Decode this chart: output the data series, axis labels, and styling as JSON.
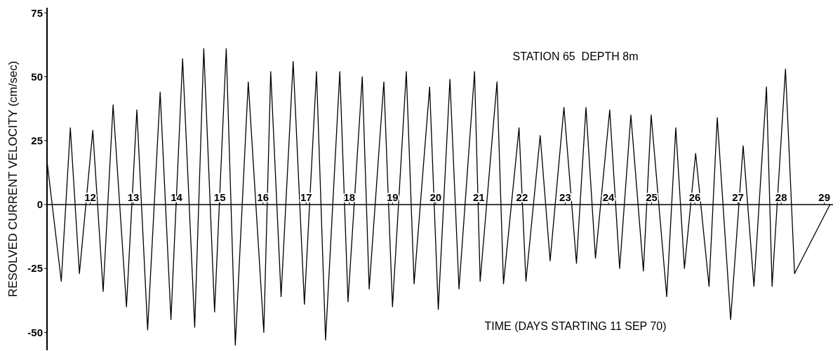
{
  "chart_data": {
    "type": "line",
    "title": "STATION 65  DEPTH 8m",
    "xlabel": "TIME (DAYS STARTING 11 SEP 70)",
    "ylabel": "RESOLVED CURRENT VELOCITY (cm/sec)",
    "x": [
      11.0,
      11.33,
      11.54,
      11.75,
      12.06,
      12.3,
      12.53,
      12.84,
      13.08,
      13.33,
      13.62,
      13.87,
      14.14,
      14.42,
      14.63,
      14.88,
      15.15,
      15.36,
      15.66,
      16.02,
      16.18,
      16.42,
      16.7,
      16.96,
      17.24,
      17.45,
      17.78,
      17.97,
      18.3,
      18.46,
      18.8,
      19.0,
      19.32,
      19.5,
      19.86,
      20.06,
      20.33,
      20.54,
      20.9,
      21.03,
      21.42,
      21.57,
      21.93,
      22.09,
      22.42,
      22.65,
      22.97,
      23.26,
      23.48,
      23.7,
      24.03,
      24.26,
      24.52,
      24.81,
      24.99,
      25.35,
      25.56,
      25.76,
      26.02,
      26.33,
      26.52,
      26.83,
      27.12,
      27.37,
      27.66,
      27.79,
      28.1,
      28.31,
      29.13
    ],
    "series": [
      {
        "color": "#000000",
        "values": [
          17,
          -30,
          30,
          -27,
          29,
          -34,
          39,
          -40,
          37,
          -49,
          44,
          -45,
          57,
          -48,
          61,
          -42,
          61,
          -55,
          48,
          -50,
          52,
          -36,
          56,
          -39,
          52,
          -53,
          52,
          -38,
          50,
          -33,
          48,
          -40,
          52,
          -31,
          46,
          -41,
          49,
          -33,
          52,
          -30,
          48,
          -31,
          30,
          -30,
          27,
          -22,
          38,
          -23,
          38,
          -21,
          37,
          -25,
          35,
          -26,
          35,
          -36,
          30,
          -25,
          20,
          -32,
          34,
          -45,
          23,
          -32,
          46,
          -32,
          53,
          -27,
          0
        ]
      }
    ],
    "xlim": [
      11,
      29.2
    ],
    "ylim": [
      -57,
      77
    ],
    "xticks": [
      12,
      13,
      14,
      15,
      16,
      17,
      18,
      19,
      20,
      21,
      22,
      23,
      24,
      25,
      26,
      27,
      28,
      29
    ],
    "yticks": [
      -50,
      -25,
      0,
      25,
      50,
      75
    ],
    "marker": "none",
    "line_style": "solid",
    "grid": false
  }
}
